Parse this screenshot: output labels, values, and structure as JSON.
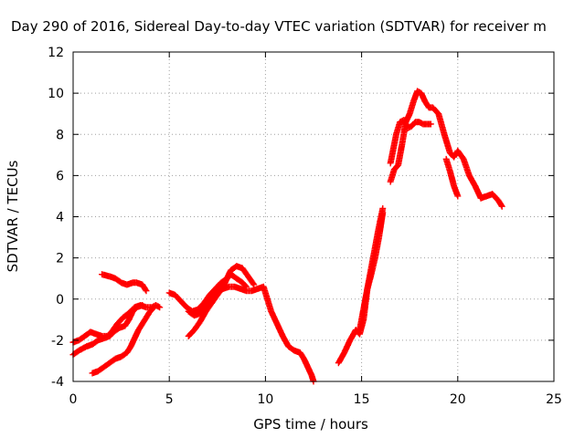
{
  "chart_data": {
    "type": "scatter",
    "title": "Day 290 of 2016, Sidereal Day-to-day VTEC variation (SDTVAR) for receiver m",
    "xlabel": "GPS time / hours",
    "ylabel": "SDTVAR / TECUs",
    "xlim": [
      0,
      25
    ],
    "ylim": [
      -4,
      12
    ],
    "xticks": [
      "0",
      "5",
      "10",
      "15",
      "20",
      "25"
    ],
    "yticks": [
      "-4",
      "-2",
      "0",
      "2",
      "4",
      "6",
      "8",
      "10",
      "12"
    ],
    "grid": true,
    "legend": "none",
    "marker": "+",
    "colors": {
      "series": "#ff0000",
      "grid": "#a0a0a0",
      "axes": "#000000"
    },
    "series": [
      {
        "x": [
          0.0,
          0.3,
          0.6,
          0.9,
          1.2,
          1.5,
          1.8,
          2.0,
          2.3,
          2.6,
          3.0,
          3.2,
          3.5,
          3.8,
          4.1,
          4.3,
          4.5
        ],
        "y": [
          -2.1,
          -2.0,
          -1.8,
          -1.6,
          -1.7,
          -1.8,
          -1.8,
          -1.6,
          -1.2,
          -0.9,
          -0.6,
          -0.4,
          -0.3,
          -0.4,
          -0.4,
          -0.3,
          -0.4
        ]
      },
      {
        "x": [
          0.0,
          0.3,
          0.7,
          1.0,
          1.3,
          1.6,
          1.9,
          2.1,
          2.4,
          2.7,
          2.9,
          3.1,
          3.3,
          3.6
        ],
        "y": [
          -2.7,
          -2.5,
          -2.3,
          -2.2,
          -2.0,
          -1.9,
          -1.8,
          -1.6,
          -1.4,
          -1.3,
          -1.0,
          -0.6,
          -0.4,
          -0.3
        ]
      },
      {
        "x": [
          1.0,
          1.3,
          1.6,
          1.9,
          2.2,
          2.5,
          2.8,
          3.0,
          3.2,
          3.4,
          3.6,
          3.8,
          4.0,
          4.2
        ],
        "y": [
          -3.6,
          -3.5,
          -3.3,
          -3.1,
          -2.9,
          -2.8,
          -2.6,
          -2.3,
          -1.9,
          -1.5,
          -1.2,
          -0.9,
          -0.6,
          -0.4
        ]
      },
      {
        "x": [
          1.5,
          1.9,
          2.2,
          2.5,
          2.8,
          3.1,
          3.3,
          3.6,
          3.8
        ],
        "y": [
          1.2,
          1.1,
          1.0,
          0.8,
          0.7,
          0.8,
          0.8,
          0.7,
          0.4
        ]
      },
      {
        "x": [
          5.0,
          5.3,
          5.6,
          5.9,
          6.2,
          6.5,
          6.8,
          7.1,
          7.4,
          7.7,
          8.0,
          8.2,
          8.5,
          8.8,
          9.0
        ],
        "y": [
          0.3,
          0.2,
          -0.1,
          -0.4,
          -0.6,
          -0.5,
          -0.2,
          0.2,
          0.5,
          0.8,
          1.0,
          1.2,
          1.0,
          0.8,
          0.6
        ]
      },
      {
        "x": [
          6.0,
          6.3,
          6.6,
          6.9,
          7.2,
          7.5,
          7.8,
          8.0,
          8.2,
          8.5,
          8.8,
          9.1,
          9.4
        ],
        "y": [
          -1.8,
          -1.5,
          -1.1,
          -0.6,
          -0.2,
          0.2,
          0.6,
          1.0,
          1.4,
          1.6,
          1.5,
          1.1,
          0.7
        ]
      },
      {
        "x": [
          6.0,
          6.3,
          6.6,
          6.9,
          7.2,
          7.5,
          7.8,
          8.1,
          8.4,
          8.7,
          9.0,
          9.3,
          9.6,
          9.9,
          10.1,
          10.3,
          10.6,
          10.9,
          11.2,
          11.5,
          11.8,
          12.0,
          12.2,
          12.4,
          12.5
        ],
        "y": [
          -0.6,
          -0.8,
          -0.7,
          -0.3,
          0.1,
          0.3,
          0.5,
          0.6,
          0.6,
          0.5,
          0.4,
          0.4,
          0.5,
          0.6,
          0.0,
          -0.6,
          -1.2,
          -1.8,
          -2.3,
          -2.5,
          -2.6,
          -2.9,
          -3.3,
          -3.7,
          -4.0
        ]
      },
      {
        "x": [
          13.8,
          14.1,
          14.4,
          14.7,
          14.9,
          15.1,
          15.3,
          15.5,
          15.7,
          15.9,
          16.1
        ],
        "y": [
          -3.1,
          -2.6,
          -2.0,
          -1.5,
          -1.7,
          -1.0,
          0.5,
          1.5,
          2.5,
          3.5,
          4.4
        ]
      },
      {
        "x": [
          14.9,
          15.1,
          15.3,
          15.5,
          15.7,
          15.9,
          16.1
        ],
        "y": [
          -1.5,
          -0.5,
          0.5,
          1.2,
          2.0,
          3.0,
          4.2
        ]
      },
      {
        "x": [
          16.5,
          16.7,
          16.9,
          17.1,
          17.3,
          17.5,
          17.7,
          17.9,
          18.1,
          18.3,
          18.5,
          18.7,
          19.0,
          19.3,
          19.6,
          19.8,
          20.0,
          20.3,
          20.6,
          20.9,
          21.2,
          21.5,
          21.8,
          22.1,
          22.3
        ],
        "y": [
          5.7,
          6.3,
          6.5,
          7.5,
          8.6,
          9.0,
          9.6,
          10.1,
          10.0,
          9.6,
          9.3,
          9.3,
          9.0,
          8.0,
          7.1,
          6.9,
          7.2,
          6.8,
          6.0,
          5.5,
          4.9,
          5.0,
          5.1,
          4.8,
          4.5
        ]
      },
      {
        "x": [
          16.5,
          16.8,
          17.0,
          17.2,
          17.4,
          17.6,
          17.8,
          18.0,
          18.2,
          18.4,
          18.6
        ],
        "y": [
          6.6,
          8.0,
          8.6,
          8.7,
          8.3,
          8.4,
          8.6,
          8.6,
          8.5,
          8.5,
          8.5
        ]
      },
      {
        "x": [
          19.4,
          19.6,
          19.8,
          20.0
        ],
        "y": [
          6.8,
          6.2,
          5.5,
          5.0
        ]
      }
    ]
  }
}
